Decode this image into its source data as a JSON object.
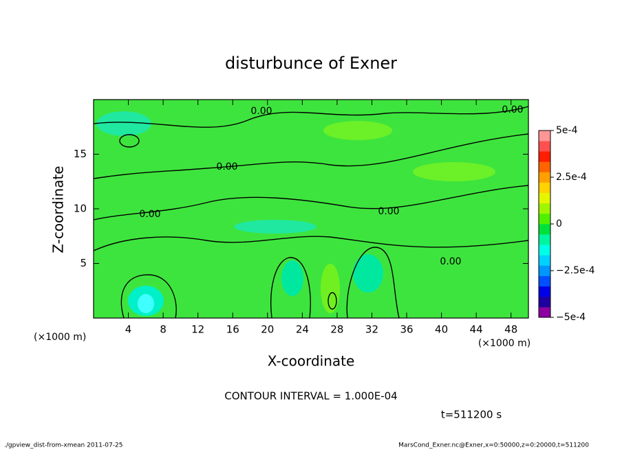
{
  "chart_data": {
    "type": "contour",
    "title": "disturbunce of Exner",
    "x_label": "X-coordinate",
    "y_label": "Z-coordinate",
    "x_unit": "(×1000 m)",
    "y_unit": "(×1000 m)",
    "xlim": [
      0,
      50
    ],
    "ylim": [
      0,
      20
    ],
    "xticks": [
      4,
      8,
      12,
      16,
      20,
      24,
      28,
      32,
      36,
      40,
      44,
      48
    ],
    "yticks": [
      5,
      10,
      15
    ],
    "contour_labels": [
      "0.00",
      "0.00",
      "0.00",
      "0.00",
      "0.00",
      "0.00"
    ],
    "contour_interval": "CONTOUR INTERVAL = 1.000E-04",
    "time_label": "t=511200 s",
    "colorbar": {
      "lim": [
        -0.0005,
        0.0005
      ],
      "ticks": [
        {
          "value": 0.0005,
          "label": "5e-4"
        },
        {
          "value": 0.00025,
          "label": "2.5e-4"
        },
        0,
        {
          "value": -0.00025,
          "label": "−2.5e-4"
        },
        {
          "value": -0.0005,
          "label": "−5e-4"
        }
      ],
      "colors": [
        "#8c00a0",
        "#1e00a0",
        "#0000e6",
        "#0050ff",
        "#0096ff",
        "#00d2ff",
        "#00ffe6",
        "#00f5a0",
        "#00e13c",
        "#50f000",
        "#a0f500",
        "#e6f500",
        "#ffd200",
        "#ffa000",
        "#ff6400",
        "#ff1e00",
        "#ff5050",
        "#ff9696"
      ]
    },
    "footer_left": "./gpview_dist-from-xmean  2011-07-25",
    "footer_right": "MarsCond_Exner.nc@Exner,x=0:50000,z=0:20000,t=511200"
  }
}
